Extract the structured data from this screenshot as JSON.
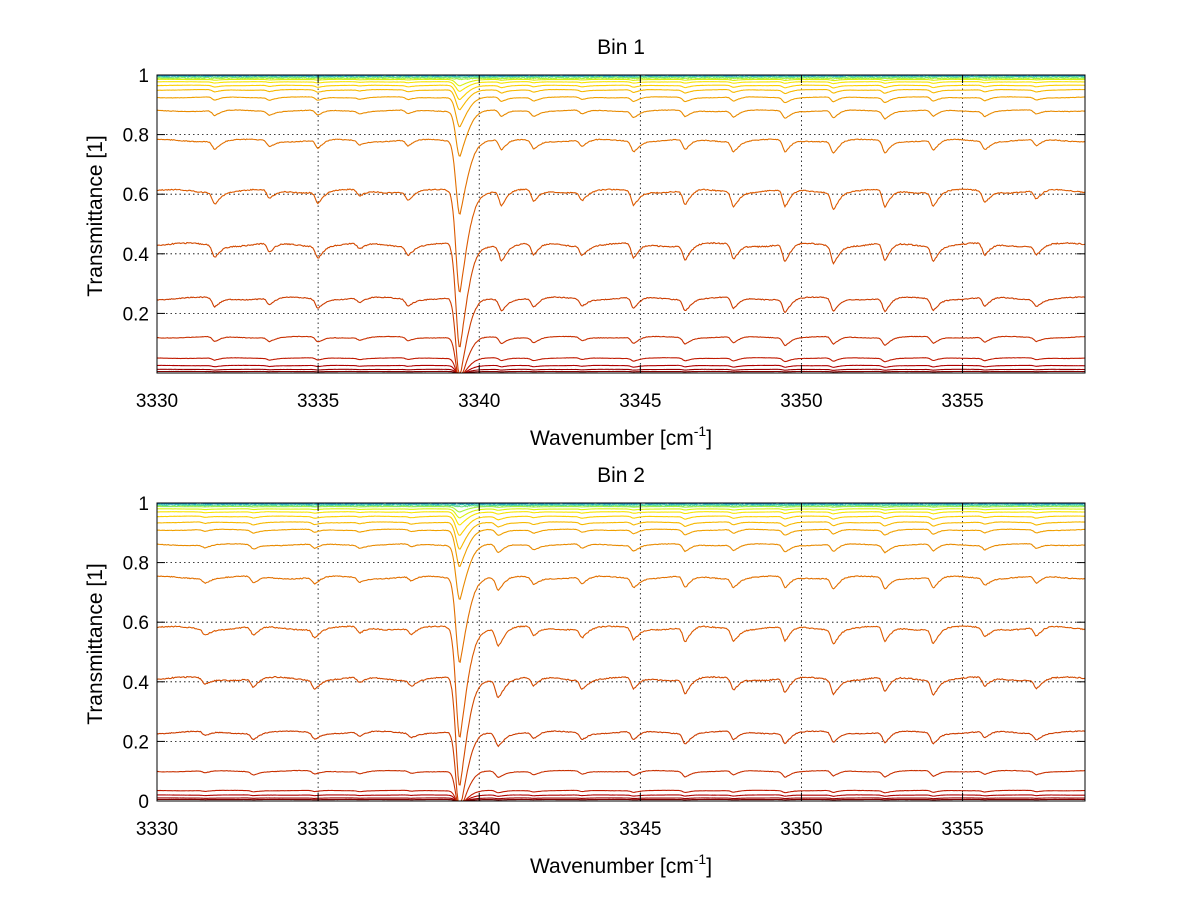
{
  "chart_data": [
    {
      "type": "line",
      "title": "Bin 1",
      "xlabel": "Wavenumber [cm",
      "xlabel_sup": "-1",
      "xlabel_end": "]",
      "ylabel": "Transmittance [1]",
      "xlim": [
        3330,
        3358.8
      ],
      "ylim": [
        0,
        1
      ],
      "grid": true,
      "xticks": [
        3330,
        3335,
        3340,
        3345,
        3350,
        3355
      ],
      "yticks": [
        0.2,
        0.4,
        0.6,
        0.8,
        1
      ],
      "ytick_labels": [
        "0.2",
        "0.4",
        "0.6",
        "0.8",
        "1"
      ],
      "series_baselines": [
        0.005,
        0.012,
        0.025,
        0.05,
        0.12,
        0.25,
        0.43,
        0.61,
        0.78,
        0.88,
        0.925,
        0.95,
        0.965,
        0.977,
        0.985,
        0.991,
        0.995,
        0.998,
        1.0
      ],
      "series_colors": [
        "#7f0000",
        "#990000",
        "#b00000",
        "#c01a00",
        "#c83000",
        "#cc3d00",
        "#d24a00",
        "#dc5a00",
        "#e27000",
        "#e88a00",
        "#f0a000",
        "#f6b800",
        "#fbcf00",
        "#f8e400",
        "#d8ef10",
        "#a8f040",
        "#6fe080",
        "#3cc8b0",
        "#1f8fd0"
      ],
      "features": [
        {
          "x": 3339.4,
          "depth": 0.36,
          "width": 0.12
        },
        {
          "x": 3331.8,
          "depth": 0.04,
          "width": 0.08
        },
        {
          "x": 3333.5,
          "depth": 0.03,
          "width": 0.08
        },
        {
          "x": 3335.0,
          "depth": 0.04,
          "width": 0.08
        },
        {
          "x": 3336.3,
          "depth": 0.02,
          "width": 0.08
        },
        {
          "x": 3337.8,
          "depth": 0.03,
          "width": 0.08
        },
        {
          "x": 3340.7,
          "depth": 0.05,
          "width": 0.08
        },
        {
          "x": 3341.7,
          "depth": 0.04,
          "width": 0.08
        },
        {
          "x": 3343.2,
          "depth": 0.03,
          "width": 0.08
        },
        {
          "x": 3344.8,
          "depth": 0.05,
          "width": 0.08
        },
        {
          "x": 3346.4,
          "depth": 0.05,
          "width": 0.08
        },
        {
          "x": 3347.9,
          "depth": 0.05,
          "width": 0.08
        },
        {
          "x": 3349.5,
          "depth": 0.06,
          "width": 0.08
        },
        {
          "x": 3351.0,
          "depth": 0.06,
          "width": 0.08
        },
        {
          "x": 3352.6,
          "depth": 0.06,
          "width": 0.08
        },
        {
          "x": 3354.1,
          "depth": 0.05,
          "width": 0.08
        },
        {
          "x": 3355.7,
          "depth": 0.04,
          "width": 0.08
        },
        {
          "x": 3357.3,
          "depth": 0.03,
          "width": 0.08
        }
      ]
    },
    {
      "type": "line",
      "title": "Bin 2",
      "xlabel": "Wavenumber [cm",
      "xlabel_sup": "-1",
      "xlabel_end": "]",
      "ylabel": "Transmittance [1]",
      "xlim": [
        3330,
        3358.8
      ],
      "ylim": [
        0,
        1
      ],
      "grid": true,
      "xticks": [
        3330,
        3335,
        3340,
        3345,
        3350,
        3355
      ],
      "yticks": [
        0,
        0.2,
        0.4,
        0.6,
        0.8,
        1
      ],
      "ytick_labels": [
        "0",
        "0.2",
        "0.4",
        "0.6",
        "0.8",
        "1"
      ],
      "series_baselines": [
        0.005,
        0.01,
        0.02,
        0.035,
        0.1,
        0.23,
        0.41,
        0.58,
        0.75,
        0.86,
        0.91,
        0.935,
        0.955,
        0.97,
        0.98,
        0.988,
        0.993,
        0.997,
        1.0
      ],
      "series_colors": [
        "#7f0000",
        "#990000",
        "#b00000",
        "#c01a00",
        "#c83000",
        "#cc3d00",
        "#d24a00",
        "#dc5a00",
        "#e27000",
        "#e88a00",
        "#f0a000",
        "#f6b800",
        "#fbcf00",
        "#f8e400",
        "#d8ef10",
        "#a8f040",
        "#6fe080",
        "#3cc8b0",
        "#1f8fd0"
      ],
      "features": [
        {
          "x": 3339.4,
          "depth": 0.38,
          "width": 0.12
        },
        {
          "x": 3340.6,
          "depth": 0.06,
          "width": 0.09
        },
        {
          "x": 3331.5,
          "depth": 0.02,
          "width": 0.08
        },
        {
          "x": 3333.0,
          "depth": 0.03,
          "width": 0.08
        },
        {
          "x": 3334.9,
          "depth": 0.03,
          "width": 0.08
        },
        {
          "x": 3336.3,
          "depth": 0.02,
          "width": 0.08
        },
        {
          "x": 3337.9,
          "depth": 0.02,
          "width": 0.08
        },
        {
          "x": 3341.7,
          "depth": 0.03,
          "width": 0.08
        },
        {
          "x": 3343.2,
          "depth": 0.03,
          "width": 0.08
        },
        {
          "x": 3344.8,
          "depth": 0.04,
          "width": 0.08
        },
        {
          "x": 3346.4,
          "depth": 0.05,
          "width": 0.08
        },
        {
          "x": 3347.9,
          "depth": 0.04,
          "width": 0.08
        },
        {
          "x": 3349.5,
          "depth": 0.05,
          "width": 0.08
        },
        {
          "x": 3351.0,
          "depth": 0.05,
          "width": 0.08
        },
        {
          "x": 3352.6,
          "depth": 0.05,
          "width": 0.08
        },
        {
          "x": 3354.1,
          "depth": 0.05,
          "width": 0.08
        },
        {
          "x": 3355.7,
          "depth": 0.03,
          "width": 0.08
        },
        {
          "x": 3357.3,
          "depth": 0.03,
          "width": 0.08
        }
      ]
    }
  ]
}
